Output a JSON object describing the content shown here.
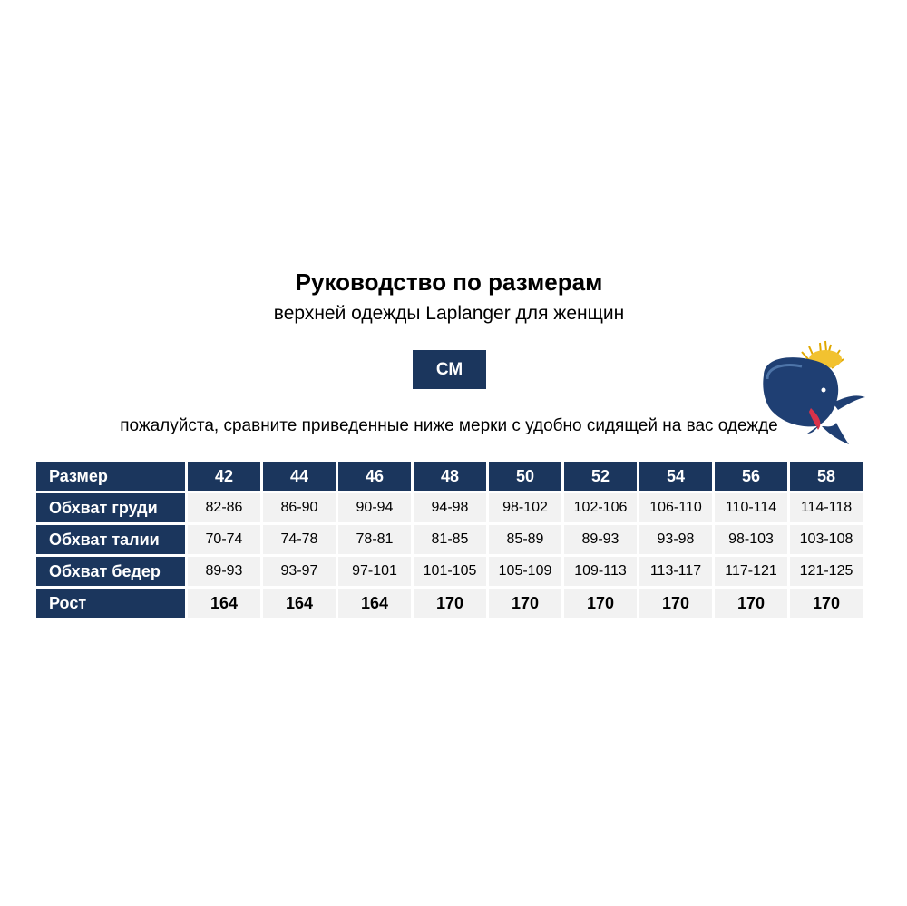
{
  "title": "Руководство по размерам",
  "subtitle": "верхней одежды Laplanger для женщин",
  "unit_label": "СМ",
  "note": "пожалуйста, сравните приведенные ниже мерки с удобно сидящей на вас одежде",
  "colors": {
    "header": "#1b365d",
    "cell": "#f2f2f2"
  },
  "table": {
    "rows": [
      {
        "label": "Размер",
        "values": [
          "42",
          "44",
          "46",
          "48",
          "50",
          "52",
          "54",
          "56",
          "58"
        ]
      },
      {
        "label": "Обхват груди",
        "values": [
          "82-86",
          "86-90",
          "90-94",
          "94-98",
          "98-102",
          "102-106",
          "106-110",
          "110-114",
          "114-118"
        ]
      },
      {
        "label": "Обхват талии",
        "values": [
          "70-74",
          "74-78",
          "78-81",
          "81-85",
          "85-89",
          "89-93",
          "93-98",
          "98-103",
          "103-108"
        ]
      },
      {
        "label": "Обхват бедер",
        "values": [
          "89-93",
          "93-97",
          "97-101",
          "101-105",
          "105-109",
          "109-113",
          "113-117",
          "117-121",
          "121-125"
        ]
      },
      {
        "label": "Рост",
        "values": [
          "164",
          "164",
          "164",
          "170",
          "170",
          "170",
          "170",
          "170",
          "170"
        ]
      }
    ]
  }
}
